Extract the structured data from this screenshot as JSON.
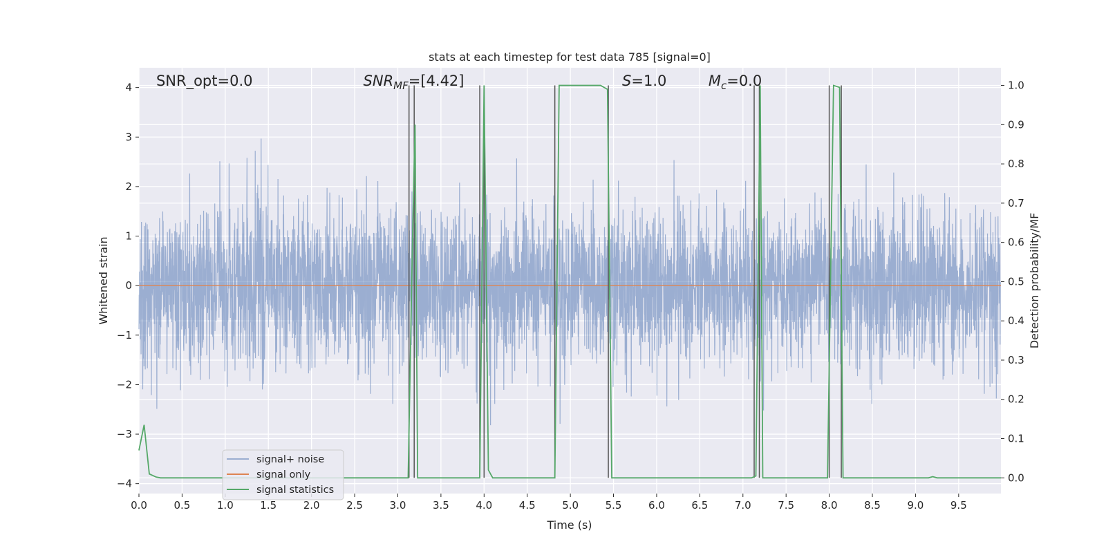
{
  "chart_data": {
    "type": "line",
    "title": "stats at each timestep for test data 785 [signal=0]",
    "xlabel": "Time (s)",
    "ylabel_left": "Whitened strain",
    "ylabel_right": "Detection probability/MF",
    "xlim": [
      0,
      9.99
    ],
    "ylim_left": [
      -4.2,
      4.4
    ],
    "ylim_right": [
      -0.04,
      1.045
    ],
    "x_ticks": [
      0.0,
      0.5,
      1.0,
      1.5,
      2.0,
      2.5,
      3.0,
      3.5,
      4.0,
      4.5,
      5.0,
      5.5,
      6.0,
      6.5,
      7.0,
      7.5,
      8.0,
      8.5,
      9.0,
      9.5
    ],
    "x_tick_labels": [
      "0.0",
      "0.5",
      "1.0",
      "1.5",
      "2.0",
      "2.5",
      "3.0",
      "3.5",
      "4.0",
      "4.5",
      "5.0",
      "5.5",
      "6.0",
      "6.5",
      "7.0",
      "7.5",
      "8.0",
      "8.5",
      "9.0",
      "9.5"
    ],
    "y_left_ticks": [
      -4,
      -3,
      -2,
      -1,
      0,
      1,
      2,
      3,
      4
    ],
    "y_left_tick_labels": [
      "−4",
      "−3",
      "−2",
      "−1",
      "0",
      "1",
      "2",
      "3",
      "4"
    ],
    "y_right_ticks": [
      0.0,
      0.1,
      0.2,
      0.3,
      0.4,
      0.5,
      0.6,
      0.7,
      0.8,
      0.9,
      1.0
    ],
    "y_right_tick_labels": [
      "0.0",
      "0.1",
      "0.2",
      "0.3",
      "0.4",
      "0.5",
      "0.6",
      "0.7",
      "0.8",
      "0.9",
      "1.0"
    ],
    "grid": true,
    "legend_position": "lower-left",
    "annotations": [
      {
        "key": "snr_opt",
        "parts": [
          {
            "text": "SNR_opt=0.0",
            "italic": false
          }
        ],
        "x": 0.2
      },
      {
        "key": "snr_mf",
        "parts": [
          {
            "text": "SNR",
            "italic": true
          },
          {
            "text": "MF",
            "italic": true,
            "sub": true
          },
          {
            "text": "=[4.42]",
            "italic": false
          }
        ],
        "x": 2.6
      },
      {
        "key": "s",
        "parts": [
          {
            "text": "S",
            "italic": true
          },
          {
            "text": "=1.0",
            "italic": false
          }
        ],
        "x": 5.6
      },
      {
        "key": "mc",
        "parts": [
          {
            "text": "M",
            "italic": true
          },
          {
            "text": "c",
            "italic": true,
            "sub": true
          },
          {
            "text": "=0.0",
            "italic": false
          }
        ],
        "x": 6.6
      }
    ],
    "series": [
      {
        "name": "signal+ noise",
        "axis": "left",
        "color": "#4c72b0",
        "opacity": 0.5,
        "kind": "noise",
        "sample_rate": 409.6,
        "std": 0.8
      },
      {
        "name": "signal only",
        "axis": "left",
        "color": "#dd8452",
        "kind": "constant",
        "value": 0.0
      },
      {
        "name": "signal statistics",
        "axis": "right",
        "color": "#55a868",
        "x": [
          0.0,
          0.06,
          0.12,
          0.2,
          0.25,
          3.12,
          3.17,
          3.2,
          3.23,
          3.95,
          4.0,
          4.05,
          4.1,
          4.82,
          4.87,
          5.35,
          5.43,
          5.48,
          7.1,
          7.15,
          7.2,
          7.23,
          7.98,
          8.05,
          8.12,
          8.16,
          9.15,
          9.2,
          9.25,
          9.99
        ],
        "values": [
          0.07,
          0.135,
          0.01,
          0.002,
          0.0,
          0.0,
          0.6,
          0.9,
          0.0,
          0.0,
          1.0,
          0.02,
          0.0,
          0.0,
          1.0,
          1.0,
          0.99,
          0.0,
          0.0,
          0.005,
          1.0,
          0.0,
          0.0,
          1.0,
          0.995,
          0.0,
          0.0,
          0.003,
          0.0,
          0.0
        ]
      }
    ],
    "vlines": {
      "color": "#555555",
      "x": [
        3.13,
        3.19,
        3.95,
        4.0,
        4.82,
        5.44,
        7.13,
        7.19,
        8.0,
        8.14
      ],
      "y_range_right": [
        0.0,
        1.0
      ]
    }
  }
}
